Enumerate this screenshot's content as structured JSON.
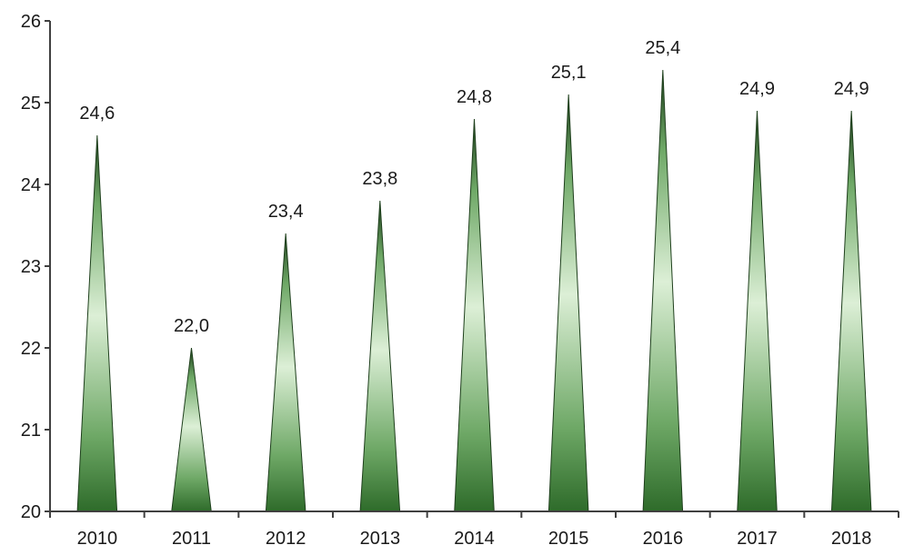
{
  "chart_data": {
    "type": "bar",
    "bar_shape": "cone",
    "categories": [
      "2010",
      "2011",
      "2012",
      "2013",
      "2014",
      "2015",
      "2016",
      "2017",
      "2018"
    ],
    "values": [
      24.6,
      22.0,
      23.4,
      23.8,
      24.8,
      25.1,
      25.4,
      24.9,
      24.9
    ],
    "data_labels": [
      "24,6",
      "22,0",
      "23,4",
      "23,8",
      "24,8",
      "25,1",
      "25,4",
      "24,9",
      "24,9"
    ],
    "yticks": [
      20,
      21,
      22,
      23,
      24,
      25,
      26
    ],
    "ytick_labels": [
      "20",
      "21",
      "22",
      "23",
      "24",
      "25",
      "26"
    ],
    "ylim": [
      20,
      26
    ],
    "title": "",
    "xlabel": "",
    "ylabel": "",
    "grid": false,
    "legend": "none",
    "colors": {
      "dark_green": "#2e6b2a",
      "mid_green": "#6ea866",
      "light_green": "#dcefd6",
      "tip": "#1e3f1c"
    }
  }
}
